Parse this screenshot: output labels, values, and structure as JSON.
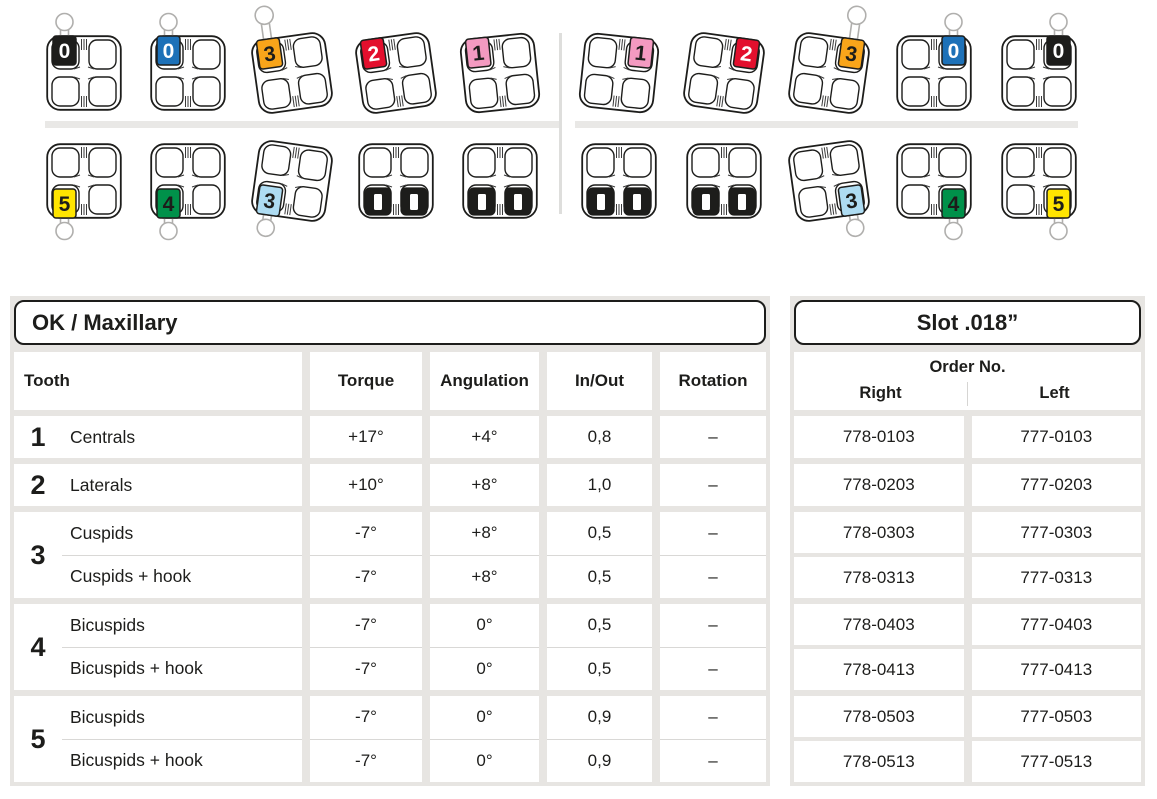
{
  "illustration": {
    "upper_left": [
      {
        "label": "0",
        "color": "#1d1d1b",
        "text_color": "#ffffff",
        "hook": "ball-top"
      },
      {
        "label": "0",
        "color": "#1d71b8",
        "text_color": "#ffffff",
        "hook": "ball-top"
      },
      {
        "label": "3",
        "color": "#f9a51a",
        "text_color": "#1d1d1b",
        "hook": "pin-top"
      },
      {
        "label": "2",
        "color": "#e30f2d",
        "text_color": "#ffffff",
        "hook": null
      },
      {
        "label": "1",
        "color": "#f49ac1",
        "text_color": "#1d1d1b",
        "hook": null
      }
    ],
    "upper_right": [
      {
        "label": "1",
        "color": "#f49ac1",
        "text_color": "#1d1d1b",
        "hook": null
      },
      {
        "label": "2",
        "color": "#e30f2d",
        "text_color": "#ffffff",
        "hook": null
      },
      {
        "label": "3",
        "color": "#f9a51a",
        "text_color": "#1d1d1b",
        "hook": "pin-top"
      },
      {
        "label": "0",
        "color": "#1d71b8",
        "text_color": "#ffffff",
        "hook": "ball-top"
      },
      {
        "label": "0",
        "color": "#1d1d1b",
        "text_color": "#ffffff",
        "hook": "ball-top"
      }
    ],
    "lower_left": [
      {
        "label": "5",
        "color": "#ffe500",
        "text_color": "#1d1d1b",
        "hook": "ball-bottom"
      },
      {
        "label": "4",
        "color": "#00914a",
        "text_color": "#1d1d1b",
        "hook": "ball-bottom"
      },
      {
        "label": "3",
        "color": "#aedcf2",
        "text_color": "#1d1d1b",
        "hook": "ball-bottom"
      },
      {
        "type": "molar"
      },
      {
        "type": "molar"
      }
    ],
    "lower_right": [
      {
        "type": "molar"
      },
      {
        "type": "molar"
      },
      {
        "label": "3",
        "color": "#aedcf2",
        "text_color": "#1d1d1b",
        "hook": "ball-bottom"
      },
      {
        "label": "4",
        "color": "#00914a",
        "text_color": "#1d1d1b",
        "hook": "ball-bottom"
      },
      {
        "label": "5",
        "color": "#ffe500",
        "text_color": "#1d1d1b",
        "hook": "ball-bottom"
      }
    ]
  },
  "left_table": {
    "title": "OK / Maxillary",
    "columns": [
      "Tooth",
      "Torque",
      "Angulation",
      "In/Out",
      "Rotation"
    ],
    "groups": [
      {
        "number": "1",
        "rows": [
          {
            "name": "Centrals",
            "torque": "+17°",
            "angulation": "+4°",
            "in_out": "0,8",
            "rotation": "–"
          }
        ]
      },
      {
        "number": "2",
        "rows": [
          {
            "name": "Laterals",
            "torque": "+10°",
            "angulation": "+8°",
            "in_out": "1,0",
            "rotation": "–"
          }
        ]
      },
      {
        "number": "3",
        "rows": [
          {
            "name": "Cuspids",
            "torque": "-7°",
            "angulation": "+8°",
            "in_out": "0,5",
            "rotation": "–"
          },
          {
            "name": "Cuspids + hook",
            "torque": "-7°",
            "angulation": "+8°",
            "in_out": "0,5",
            "rotation": "–"
          }
        ]
      },
      {
        "number": "4",
        "rows": [
          {
            "name": "Bicuspids",
            "torque": "-7°",
            "angulation": "0°",
            "in_out": "0,5",
            "rotation": "–"
          },
          {
            "name": "Bicuspids + hook",
            "torque": "-7°",
            "angulation": "0°",
            "in_out": "0,5",
            "rotation": "–"
          }
        ]
      },
      {
        "number": "5",
        "rows": [
          {
            "name": "Bicuspids",
            "torque": "-7°",
            "angulation": "0°",
            "in_out": "0,9",
            "rotation": "–"
          },
          {
            "name": "Bicuspids + hook",
            "torque": "-7°",
            "angulation": "0°",
            "in_out": "0,9",
            "rotation": "–"
          }
        ]
      }
    ]
  },
  "right_table": {
    "title": "Slot .018”",
    "order_no_label": "Order No.",
    "columns": [
      "Right",
      "Left"
    ],
    "groups": [
      {
        "rows": [
          {
            "right": "778-0103",
            "left": "777-0103"
          }
        ]
      },
      {
        "rows": [
          {
            "right": "778-0203",
            "left": "777-0203"
          }
        ]
      },
      {
        "rows": [
          {
            "right": "778-0303",
            "left": "777-0303"
          },
          {
            "right": "778-0313",
            "left": "777-0313"
          }
        ]
      },
      {
        "rows": [
          {
            "right": "778-0403",
            "left": "777-0403"
          },
          {
            "right": "778-0413",
            "left": "777-0413"
          }
        ]
      },
      {
        "rows": [
          {
            "right": "778-0503",
            "left": "777-0503"
          },
          {
            "right": "778-0513",
            "left": "777-0513"
          }
        ]
      }
    ]
  },
  "colors": {
    "panel_bg": "#e7e5e2",
    "line": "#d9d8d6",
    "bracket_outline": "#1d1d1b",
    "hook_gray": "#b0afad"
  }
}
